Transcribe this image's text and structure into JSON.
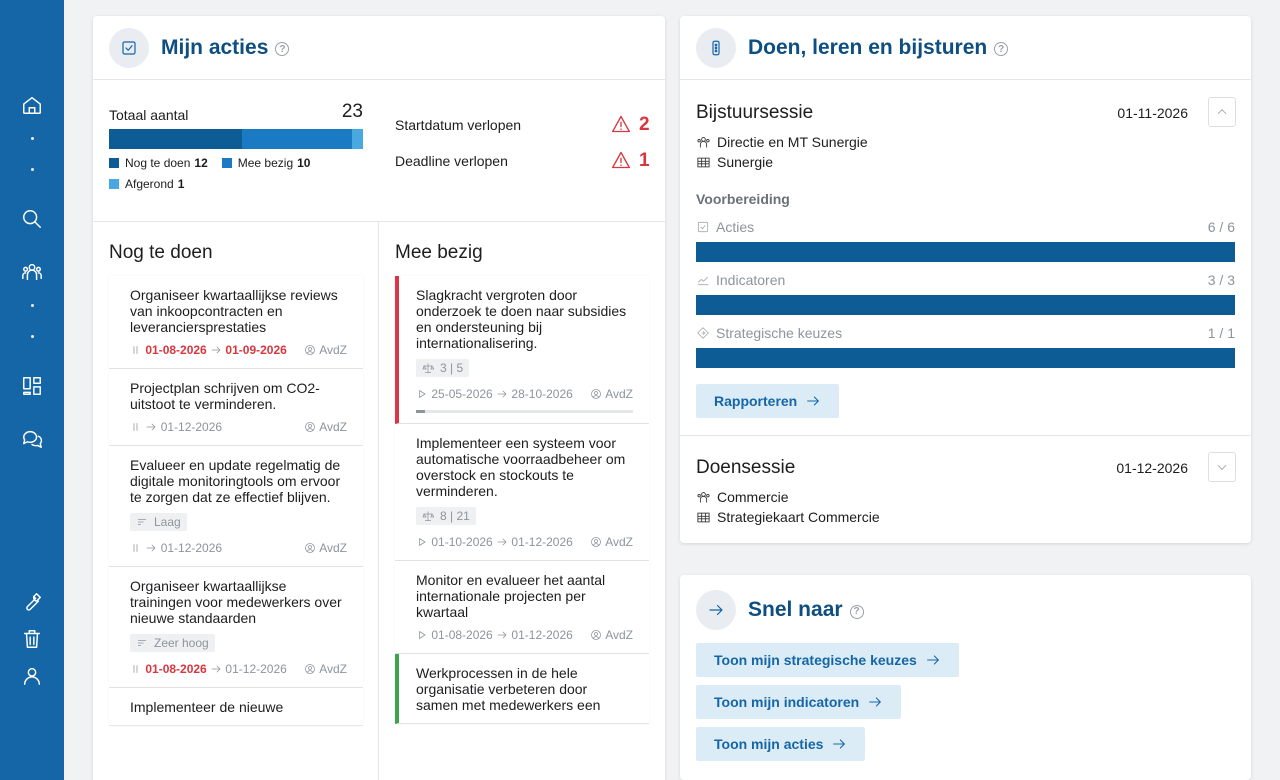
{
  "colors": {
    "sidebar": "#1566a6",
    "title": "#0e4e80",
    "danger": "#d9363e",
    "bar_dark": "#0e5c96",
    "bar_mid": "#1a7bc4",
    "bar_light": "#4aa8e0"
  },
  "sidebar": {
    "icons": [
      "home-icon",
      "search-icon",
      "people-icon",
      "dashboard-icon",
      "chat-icon",
      "wrench-icon",
      "trash-icon",
      "user-icon"
    ]
  },
  "mijn_acties": {
    "title": "Mijn acties",
    "totaal_label": "Totaal aantal",
    "totaal_value": "23",
    "segments": [
      {
        "label": "Nog te doen",
        "count": "12",
        "value": 12,
        "color": "#0e5c96"
      },
      {
        "label": "Mee bezig",
        "count": "10",
        "value": 10,
        "color": "#1a7bc4"
      },
      {
        "label": "Afgerond",
        "count": "1",
        "value": 1,
        "color": "#4aa8e0"
      }
    ],
    "warnings": [
      {
        "label": "Startdatum verlopen",
        "count": "2"
      },
      {
        "label": "Deadline verlopen",
        "count": "1"
      }
    ],
    "col_todo_title": "Nog te doen",
    "col_busy_title": "Mee bezig",
    "todo": [
      {
        "title": "Organiseer kwartaallijkse reviews van inkoopcontracten en leveranciersprestaties",
        "start": "01-08-2026",
        "end": "01-09-2026",
        "start_red": true,
        "end_red": true,
        "owner": "AvdZ",
        "tag": ""
      },
      {
        "title": "Projectplan schrijven om CO2-uitstoot te verminderen.",
        "start": "",
        "end": "01-12-2026",
        "start_red": false,
        "end_red": false,
        "owner": "AvdZ",
        "tag": ""
      },
      {
        "title": "Evalueer en update regelmatig de digitale monitoringtools om ervoor te zorgen dat ze effectief blijven.",
        "start": "",
        "end": "01-12-2026",
        "start_red": false,
        "end_red": false,
        "owner": "AvdZ",
        "tag": "Laag"
      },
      {
        "title": "Organiseer kwartaallijkse trainingen voor medewerkers over nieuwe standaarden",
        "start": "01-08-2026",
        "end": "01-12-2026",
        "start_red": true,
        "end_red": false,
        "owner": "AvdZ",
        "tag": "Zeer hoog"
      },
      {
        "title": "Implementeer de nieuwe",
        "start": "",
        "end": "",
        "start_red": false,
        "end_red": false,
        "owner": "",
        "tag": ""
      }
    ],
    "busy": [
      {
        "title": "Slagkracht vergroten door onderzoek te doen naar subsidies en ondersteuning bij internationalisering.",
        "sub": "3 | 5",
        "start": "25-05-2026",
        "end": "28-10-2026",
        "owner": "AvdZ",
        "border": "red",
        "progress": 0.04
      },
      {
        "title": "Implementeer een systeem voor automatische voorraadbeheer om overstock en stockouts te verminderen.",
        "sub": "8 | 21",
        "start": "01-10-2026",
        "end": "01-12-2026",
        "owner": "AvdZ",
        "border": "",
        "progress": null
      },
      {
        "title": "Monitor en evalueer het aantal internationale projecten per kwartaal",
        "sub": "",
        "start": "01-08-2026",
        "end": "01-12-2026",
        "owner": "AvdZ",
        "border": "",
        "progress": null
      },
      {
        "title": "Werkprocessen in de hele organisatie verbeteren door samen met medewerkers een",
        "sub": "",
        "start": "",
        "end": "",
        "owner": "",
        "border": "green",
        "progress": null
      }
    ]
  },
  "doen": {
    "title": "Doen, leren en bijsturen",
    "sessions": [
      {
        "title": "Bijstuursessie",
        "date": "01-11-2026",
        "group": "Directie en MT Sunergie",
        "map": "Sunergie",
        "prep_label": "Voorbereiding",
        "prep": [
          {
            "label": "Acties",
            "value": "6 / 6",
            "fraction": 1.0
          },
          {
            "label": "Indicatoren",
            "value": "3 / 3",
            "fraction": 1.0
          },
          {
            "label": "Strategische keuzes",
            "value": "1 / 1",
            "fraction": 1.0
          }
        ],
        "button": "Rapporteren"
      },
      {
        "title": "Doensessie",
        "date": "01-12-2026",
        "group": "Commercie",
        "map": "Strategiekaart Commercie"
      }
    ]
  },
  "snel": {
    "title": "Snel naar",
    "links": [
      "Toon mijn strategische keuzes",
      "Toon mijn indicatoren",
      "Toon mijn acties"
    ]
  }
}
